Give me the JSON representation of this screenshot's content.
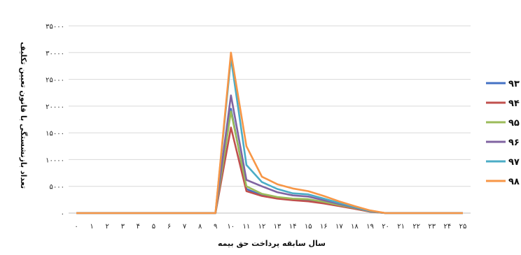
{
  "chart_data": {
    "type": "line",
    "xlabel": "سال سابقه پرداخت حق بیمه",
    "ylabel": "تعداد بازنشستگی با قانون تعیین تکلیف",
    "x": [
      "۰",
      "۱",
      "۲",
      "۳",
      "۴",
      "۵",
      "۶",
      "۷",
      "۸",
      "۹",
      "۱۰",
      "۱۱",
      "۱۲",
      "۱۳",
      "۱۴",
      "۱۵",
      "۱۶",
      "۱۷",
      "۱۸",
      "۱۹",
      "۲۰",
      "۲۱",
      "۲۲",
      "۲۳",
      "۲۴",
      "۲۵"
    ],
    "y_ticks": [
      {
        "value": 0,
        "label": "۰"
      },
      {
        "value": 5000,
        "label": "۵۰۰۰"
      },
      {
        "value": 10000,
        "label": "۱۰۰۰۰"
      },
      {
        "value": 15000,
        "label": "۱۵۰۰۰"
      },
      {
        "value": 20000,
        "label": "۲۰۰۰۰"
      },
      {
        "value": 25000,
        "label": "۲۵۰۰۰"
      },
      {
        "value": 30000,
        "label": "۳۰۰۰۰"
      },
      {
        "value": 35000,
        "label": "۳۵۰۰۰"
      }
    ],
    "ylim": [
      0,
      35000
    ],
    "grid": true,
    "legend_position": "right",
    "series": [
      {
        "name": "۹۳",
        "color": "#4472C4",
        "values": [
          0,
          0,
          0,
          0,
          0,
          0,
          0,
          0,
          0,
          0,
          19500,
          4500,
          3300,
          2800,
          2500,
          2300,
          1900,
          1400,
          900,
          300,
          0,
          0,
          0,
          0,
          0,
          0
        ]
      },
      {
        "name": "۹۴",
        "color": "#C0504D",
        "values": [
          0,
          0,
          0,
          0,
          0,
          0,
          0,
          0,
          0,
          0,
          16000,
          4100,
          3200,
          2700,
          2400,
          2200,
          1800,
          1300,
          800,
          250,
          0,
          0,
          0,
          0,
          0,
          0
        ]
      },
      {
        "name": "۹۵",
        "color": "#9BBB59",
        "values": [
          0,
          0,
          0,
          0,
          0,
          0,
          0,
          0,
          0,
          0,
          19000,
          5000,
          3600,
          3000,
          2700,
          2600,
          2100,
          1500,
          950,
          300,
          0,
          0,
          0,
          0,
          0,
          0
        ]
      },
      {
        "name": "۹۶",
        "color": "#8064A2",
        "values": [
          0,
          0,
          0,
          0,
          0,
          0,
          0,
          0,
          0,
          0,
          22000,
          6200,
          5000,
          3900,
          3300,
          3100,
          2400,
          1700,
          1050,
          350,
          0,
          0,
          0,
          0,
          0,
          0
        ]
      },
      {
        "name": "۹۷",
        "color": "#4BACC6",
        "values": [
          0,
          0,
          0,
          0,
          0,
          0,
          0,
          0,
          0,
          0,
          29000,
          9000,
          5800,
          4500,
          3700,
          3500,
          2700,
          1900,
          1150,
          400,
          0,
          0,
          0,
          0,
          0,
          0
        ]
      },
      {
        "name": "۹۸",
        "color": "#F79646",
        "values": [
          0,
          0,
          0,
          0,
          0,
          0,
          0,
          0,
          0,
          0,
          30000,
          12500,
          6800,
          5400,
          4600,
          4100,
          3200,
          2200,
          1300,
          500,
          0,
          0,
          0,
          0,
          0,
          0
        ]
      }
    ]
  }
}
